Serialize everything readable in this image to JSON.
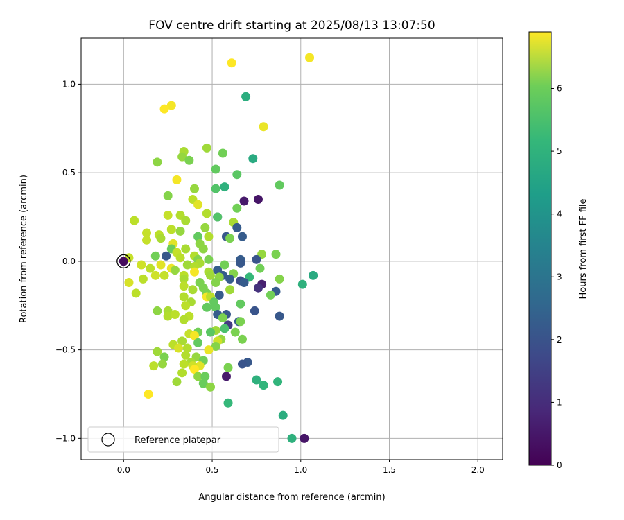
{
  "chart_data": {
    "type": "scatter",
    "title": "FOV centre drift starting at 2025/08/13 13:07:50",
    "xlabel": "Angular distance from reference (arcmin)",
    "ylabel": "Rotation from reference (arcmin)",
    "xlim": [
      -0.24,
      2.14
    ],
    "ylim": [
      -1.12,
      1.26
    ],
    "xticks": [
      0.0,
      0.5,
      1.0,
      1.5,
      2.0
    ],
    "xtick_labels": [
      "0.0",
      "0.5",
      "1.0",
      "1.5",
      "2.0"
    ],
    "yticks": [
      -1.0,
      -0.5,
      0.0,
      0.5,
      1.0
    ],
    "ytick_labels": [
      "−1.0",
      "−0.5",
      "0.0",
      "0.5",
      "1.0"
    ],
    "grid": true,
    "legend": {
      "position": "lower-left",
      "entries": [
        "Reference platepar"
      ]
    },
    "reference_point": {
      "x": 0.0,
      "y": 0.0
    },
    "colorbar": {
      "label": "Hours from first FF file",
      "range": [
        0,
        6.9
      ],
      "ticks": [
        0,
        1,
        2,
        3,
        4,
        5,
        6
      ],
      "colormap": "viridis"
    },
    "points": [
      [
        1.05,
        1.15,
        6.8
      ],
      [
        0.61,
        1.12,
        6.9
      ],
      [
        0.69,
        0.93,
        4.3
      ],
      [
        0.27,
        0.88,
        6.8
      ],
      [
        0.23,
        0.86,
        6.9
      ],
      [
        0.79,
        0.76,
        6.7
      ],
      [
        0.47,
        0.64,
        5.9
      ],
      [
        0.34,
        0.62,
        6.0
      ],
      [
        0.56,
        0.61,
        5.4
      ],
      [
        0.33,
        0.59,
        5.8
      ],
      [
        0.73,
        0.58,
        4.2
      ],
      [
        0.37,
        0.57,
        5.5
      ],
      [
        0.19,
        0.56,
        5.7
      ],
      [
        0.52,
        0.52,
        5.2
      ],
      [
        0.64,
        0.49,
        5.1
      ],
      [
        0.3,
        0.46,
        6.8
      ],
      [
        0.88,
        0.43,
        5.2
      ],
      [
        0.57,
        0.42,
        4.4
      ],
      [
        0.52,
        0.41,
        5.0
      ],
      [
        0.4,
        0.41,
        5.8
      ],
      [
        0.25,
        0.37,
        5.6
      ],
      [
        0.39,
        0.35,
        6.2
      ],
      [
        0.76,
        0.35,
        0.4
      ],
      [
        0.68,
        0.34,
        0.5
      ],
      [
        0.42,
        0.32,
        6.6
      ],
      [
        0.64,
        0.3,
        5.4
      ],
      [
        0.47,
        0.27,
        6.1
      ],
      [
        0.32,
        0.26,
        6.1
      ],
      [
        0.25,
        0.26,
        6.3
      ],
      [
        0.53,
        0.25,
        2.0
      ],
      [
        0.53,
        0.25,
        5.0
      ],
      [
        0.35,
        0.23,
        6.0
      ],
      [
        0.62,
        0.22,
        6.0
      ],
      [
        0.06,
        0.23,
        6.2
      ],
      [
        0.46,
        0.19,
        5.8
      ],
      [
        0.64,
        0.19,
        2.0
      ],
      [
        0.27,
        0.18,
        6.2
      ],
      [
        0.13,
        0.16,
        6.3
      ],
      [
        0.32,
        0.17,
        5.8
      ],
      [
        0.2,
        0.15,
        6.2
      ],
      [
        0.58,
        0.14,
        1.9
      ],
      [
        0.42,
        0.14,
        5.2
      ],
      [
        0.67,
        0.14,
        2.0
      ],
      [
        0.48,
        0.14,
        6.1
      ],
      [
        0.6,
        0.13,
        5.5
      ],
      [
        0.21,
        0.13,
        6.0
      ],
      [
        0.13,
        0.12,
        6.3
      ],
      [
        0.28,
        0.1,
        6.6
      ],
      [
        0.43,
        0.1,
        5.7
      ],
      [
        0.27,
        0.07,
        5.3
      ],
      [
        0.35,
        0.07,
        6.0
      ],
      [
        0.45,
        0.07,
        5.7
      ],
      [
        0.3,
        0.05,
        6.3
      ],
      [
        0.78,
        0.04,
        5.8
      ],
      [
        0.86,
        0.04,
        5.5
      ],
      [
        0.18,
        0.03,
        5.4
      ],
      [
        0.03,
        0.02,
        6.3
      ],
      [
        0.4,
        0.03,
        6.1
      ],
      [
        0.32,
        0.02,
        6.2
      ],
      [
        0.24,
        0.03,
        1.9
      ],
      [
        0.48,
        0.01,
        5.5
      ],
      [
        0.42,
        0.01,
        5.6
      ],
      [
        0.66,
        0.01,
        2.0
      ],
      [
        0.75,
        0.01,
        1.8
      ],
      [
        0.1,
        -0.02,
        6.4
      ],
      [
        0.43,
        -0.01,
        6.0
      ],
      [
        0.21,
        -0.02,
        6.6
      ],
      [
        0.36,
        -0.02,
        5.9
      ],
      [
        0.57,
        -0.02,
        5.4
      ],
      [
        0.4,
        -0.03,
        6.1
      ],
      [
        0.66,
        -0.01,
        1.9
      ],
      [
        0.15,
        -0.04,
        6.2
      ],
      [
        0.77,
        -0.04,
        5.4
      ],
      [
        0.27,
        -0.04,
        6.7
      ],
      [
        0.29,
        -0.05,
        5.8
      ],
      [
        0.53,
        -0.05,
        2.0
      ],
      [
        0.48,
        -0.06,
        6.0
      ],
      [
        0.4,
        -0.06,
        6.8
      ],
      [
        0.62,
        -0.07,
        5.6
      ],
      [
        0.56,
        -0.08,
        2.0
      ],
      [
        0.34,
        -0.08,
        6.2
      ],
      [
        0.18,
        -0.08,
        6.4
      ],
      [
        0.23,
        -0.08,
        6.3
      ],
      [
        0.49,
        -0.08,
        5.9
      ],
      [
        0.54,
        -0.09,
        5.7
      ],
      [
        0.71,
        -0.09,
        4.6
      ],
      [
        0.34,
        -0.1,
        6.0
      ],
      [
        0.11,
        -0.1,
        6.2
      ],
      [
        0.6,
        -0.1,
        2.0
      ],
      [
        0.88,
        -0.1,
        5.6
      ],
      [
        0.66,
        -0.11,
        1.6
      ],
      [
        0.03,
        -0.12,
        6.5
      ],
      [
        0.43,
        -0.12,
        5.5
      ],
      [
        0.52,
        -0.12,
        5.6
      ],
      [
        0.68,
        -0.12,
        2.0
      ],
      [
        1.01,
        -0.13,
        4.4
      ],
      [
        0.78,
        -0.13,
        0.6
      ],
      [
        0.76,
        -0.15,
        1.0
      ],
      [
        0.34,
        -0.14,
        6.2
      ],
      [
        0.45,
        -0.15,
        5.5
      ],
      [
        0.39,
        -0.16,
        6.0
      ],
      [
        0.6,
        -0.16,
        5.9
      ],
      [
        0.86,
        -0.17,
        2.0
      ],
      [
        0.07,
        -0.18,
        6.2
      ],
      [
        0.47,
        -0.18,
        5.5
      ],
      [
        0.54,
        -0.19,
        2.0
      ],
      [
        0.83,
        -0.19,
        5.4
      ],
      [
        0.34,
        -0.2,
        6.1
      ],
      [
        0.47,
        -0.2,
        6.8
      ],
      [
        0.49,
        -0.2,
        6.2
      ],
      [
        0.38,
        -0.23,
        6.0
      ],
      [
        0.51,
        -0.23,
        5.2
      ],
      [
        0.66,
        -0.24,
        5.2
      ],
      [
        0.35,
        -0.25,
        6.2
      ],
      [
        0.52,
        -0.26,
        5.2
      ],
      [
        0.47,
        -0.26,
        5.2
      ],
      [
        0.19,
        -0.28,
        5.7
      ],
      [
        0.74,
        -0.28,
        1.8
      ],
      [
        0.25,
        -0.28,
        6.0
      ],
      [
        0.53,
        -0.3,
        2.0
      ],
      [
        0.58,
        -0.3,
        1.9
      ],
      [
        0.88,
        -0.31,
        1.9
      ],
      [
        0.25,
        -0.31,
        6.1
      ],
      [
        0.29,
        -0.3,
        6.2
      ],
      [
        0.37,
        -0.31,
        6.2
      ],
      [
        0.56,
        -0.32,
        5.5
      ],
      [
        0.34,
        -0.33,
        6.1
      ],
      [
        0.65,
        -0.34,
        2.0
      ],
      [
        0.66,
        -0.34,
        5.5
      ],
      [
        0.59,
        -0.36,
        1.2
      ],
      [
        0.57,
        -0.38,
        4.9
      ],
      [
        0.52,
        -0.39,
        5.9
      ],
      [
        0.49,
        -0.4,
        5.1
      ],
      [
        0.42,
        -0.4,
        5.4
      ],
      [
        0.37,
        -0.41,
        6.3
      ],
      [
        0.63,
        -0.4,
        5.5
      ],
      [
        0.4,
        -0.42,
        6.8
      ],
      [
        0.67,
        -0.44,
        5.5
      ],
      [
        0.55,
        -0.44,
        5.8
      ],
      [
        0.53,
        -0.45,
        6.4
      ],
      [
        0.33,
        -0.45,
        6.0
      ],
      [
        0.42,
        -0.46,
        5.2
      ],
      [
        0.28,
        -0.47,
        6.2
      ],
      [
        0.52,
        -0.48,
        5.6
      ],
      [
        0.31,
        -0.49,
        6.5
      ],
      [
        0.36,
        -0.49,
        6.1
      ],
      [
        0.48,
        -0.5,
        6.7
      ],
      [
        0.19,
        -0.51,
        5.9
      ],
      [
        0.35,
        -0.53,
        6.1
      ],
      [
        0.23,
        -0.54,
        5.5
      ],
      [
        0.41,
        -0.54,
        5.8
      ],
      [
        0.45,
        -0.56,
        5.4
      ],
      [
        0.38,
        -0.57,
        6.0
      ],
      [
        0.7,
        -0.57,
        1.9
      ],
      [
        0.67,
        -0.58,
        1.8
      ],
      [
        0.34,
        -0.58,
        6.2
      ],
      [
        0.17,
        -0.59,
        6.2
      ],
      [
        0.22,
        -0.58,
        5.8
      ],
      [
        0.43,
        -0.59,
        6.6
      ],
      [
        0.39,
        -0.59,
        6.4
      ],
      [
        0.59,
        -0.6,
        5.5
      ],
      [
        0.4,
        -0.61,
        6.9
      ],
      [
        0.33,
        -0.63,
        6.1
      ],
      [
        0.58,
        -0.65,
        0.5
      ],
      [
        0.42,
        -0.65,
        5.7
      ],
      [
        0.46,
        -0.65,
        5.3
      ],
      [
        0.3,
        -0.68,
        5.9
      ],
      [
        0.75,
        -0.67,
        4.4
      ],
      [
        0.87,
        -0.68,
        4.5
      ],
      [
        0.45,
        -0.69,
        5.3
      ],
      [
        0.49,
        -0.71,
        5.7
      ],
      [
        0.79,
        -0.7,
        4.5
      ],
      [
        0.14,
        -0.75,
        6.9
      ],
      [
        0.59,
        -0.8,
        4.6
      ],
      [
        0.9,
        -0.87,
        4.3
      ],
      [
        0.95,
        -1.0,
        4.4
      ],
      [
        1.02,
        -1.0,
        0.4
      ],
      [
        1.07,
        -0.08,
        4.2
      ]
    ]
  }
}
